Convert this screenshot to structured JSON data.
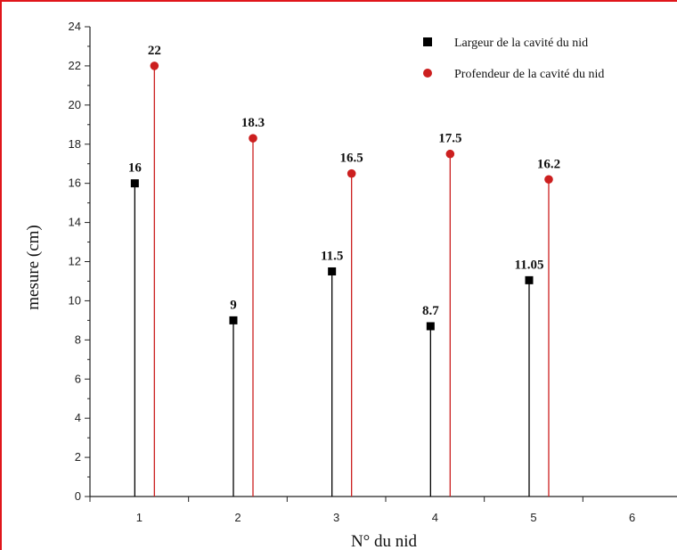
{
  "chart_data": {
    "type": "scatter",
    "title": "",
    "xlabel": "N° du nid",
    "ylabel": "mesure (cm)",
    "xlim": [
      0.5,
      6.5
    ],
    "ylim": [
      0,
      24
    ],
    "x_ticks": [
      1,
      2,
      3,
      4,
      5,
      6
    ],
    "y_ticks": [
      0,
      2,
      4,
      6,
      8,
      10,
      12,
      14,
      16,
      18,
      20,
      22,
      24
    ],
    "grid": false,
    "legend_position": "top-right",
    "series": [
      {
        "name": "Largeur de la cavité du nid",
        "marker": "square",
        "color": "#000000",
        "x": [
          1,
          2,
          3,
          4,
          5
        ],
        "values": [
          16,
          9,
          11.5,
          8.7,
          11.05
        ],
        "labels": [
          "16",
          "9",
          "11.5",
          "8.7",
          "11.05"
        ]
      },
      {
        "name": "Profendeur de la cavité du nid",
        "marker": "circle",
        "color": "#cc1f1f",
        "x": [
          1,
          2,
          3,
          4,
          5
        ],
        "values": [
          22,
          18.3,
          16.5,
          17.5,
          16.2
        ],
        "labels": [
          "22",
          "18.3",
          "16.5",
          "17.5",
          "16.2"
        ]
      }
    ]
  }
}
